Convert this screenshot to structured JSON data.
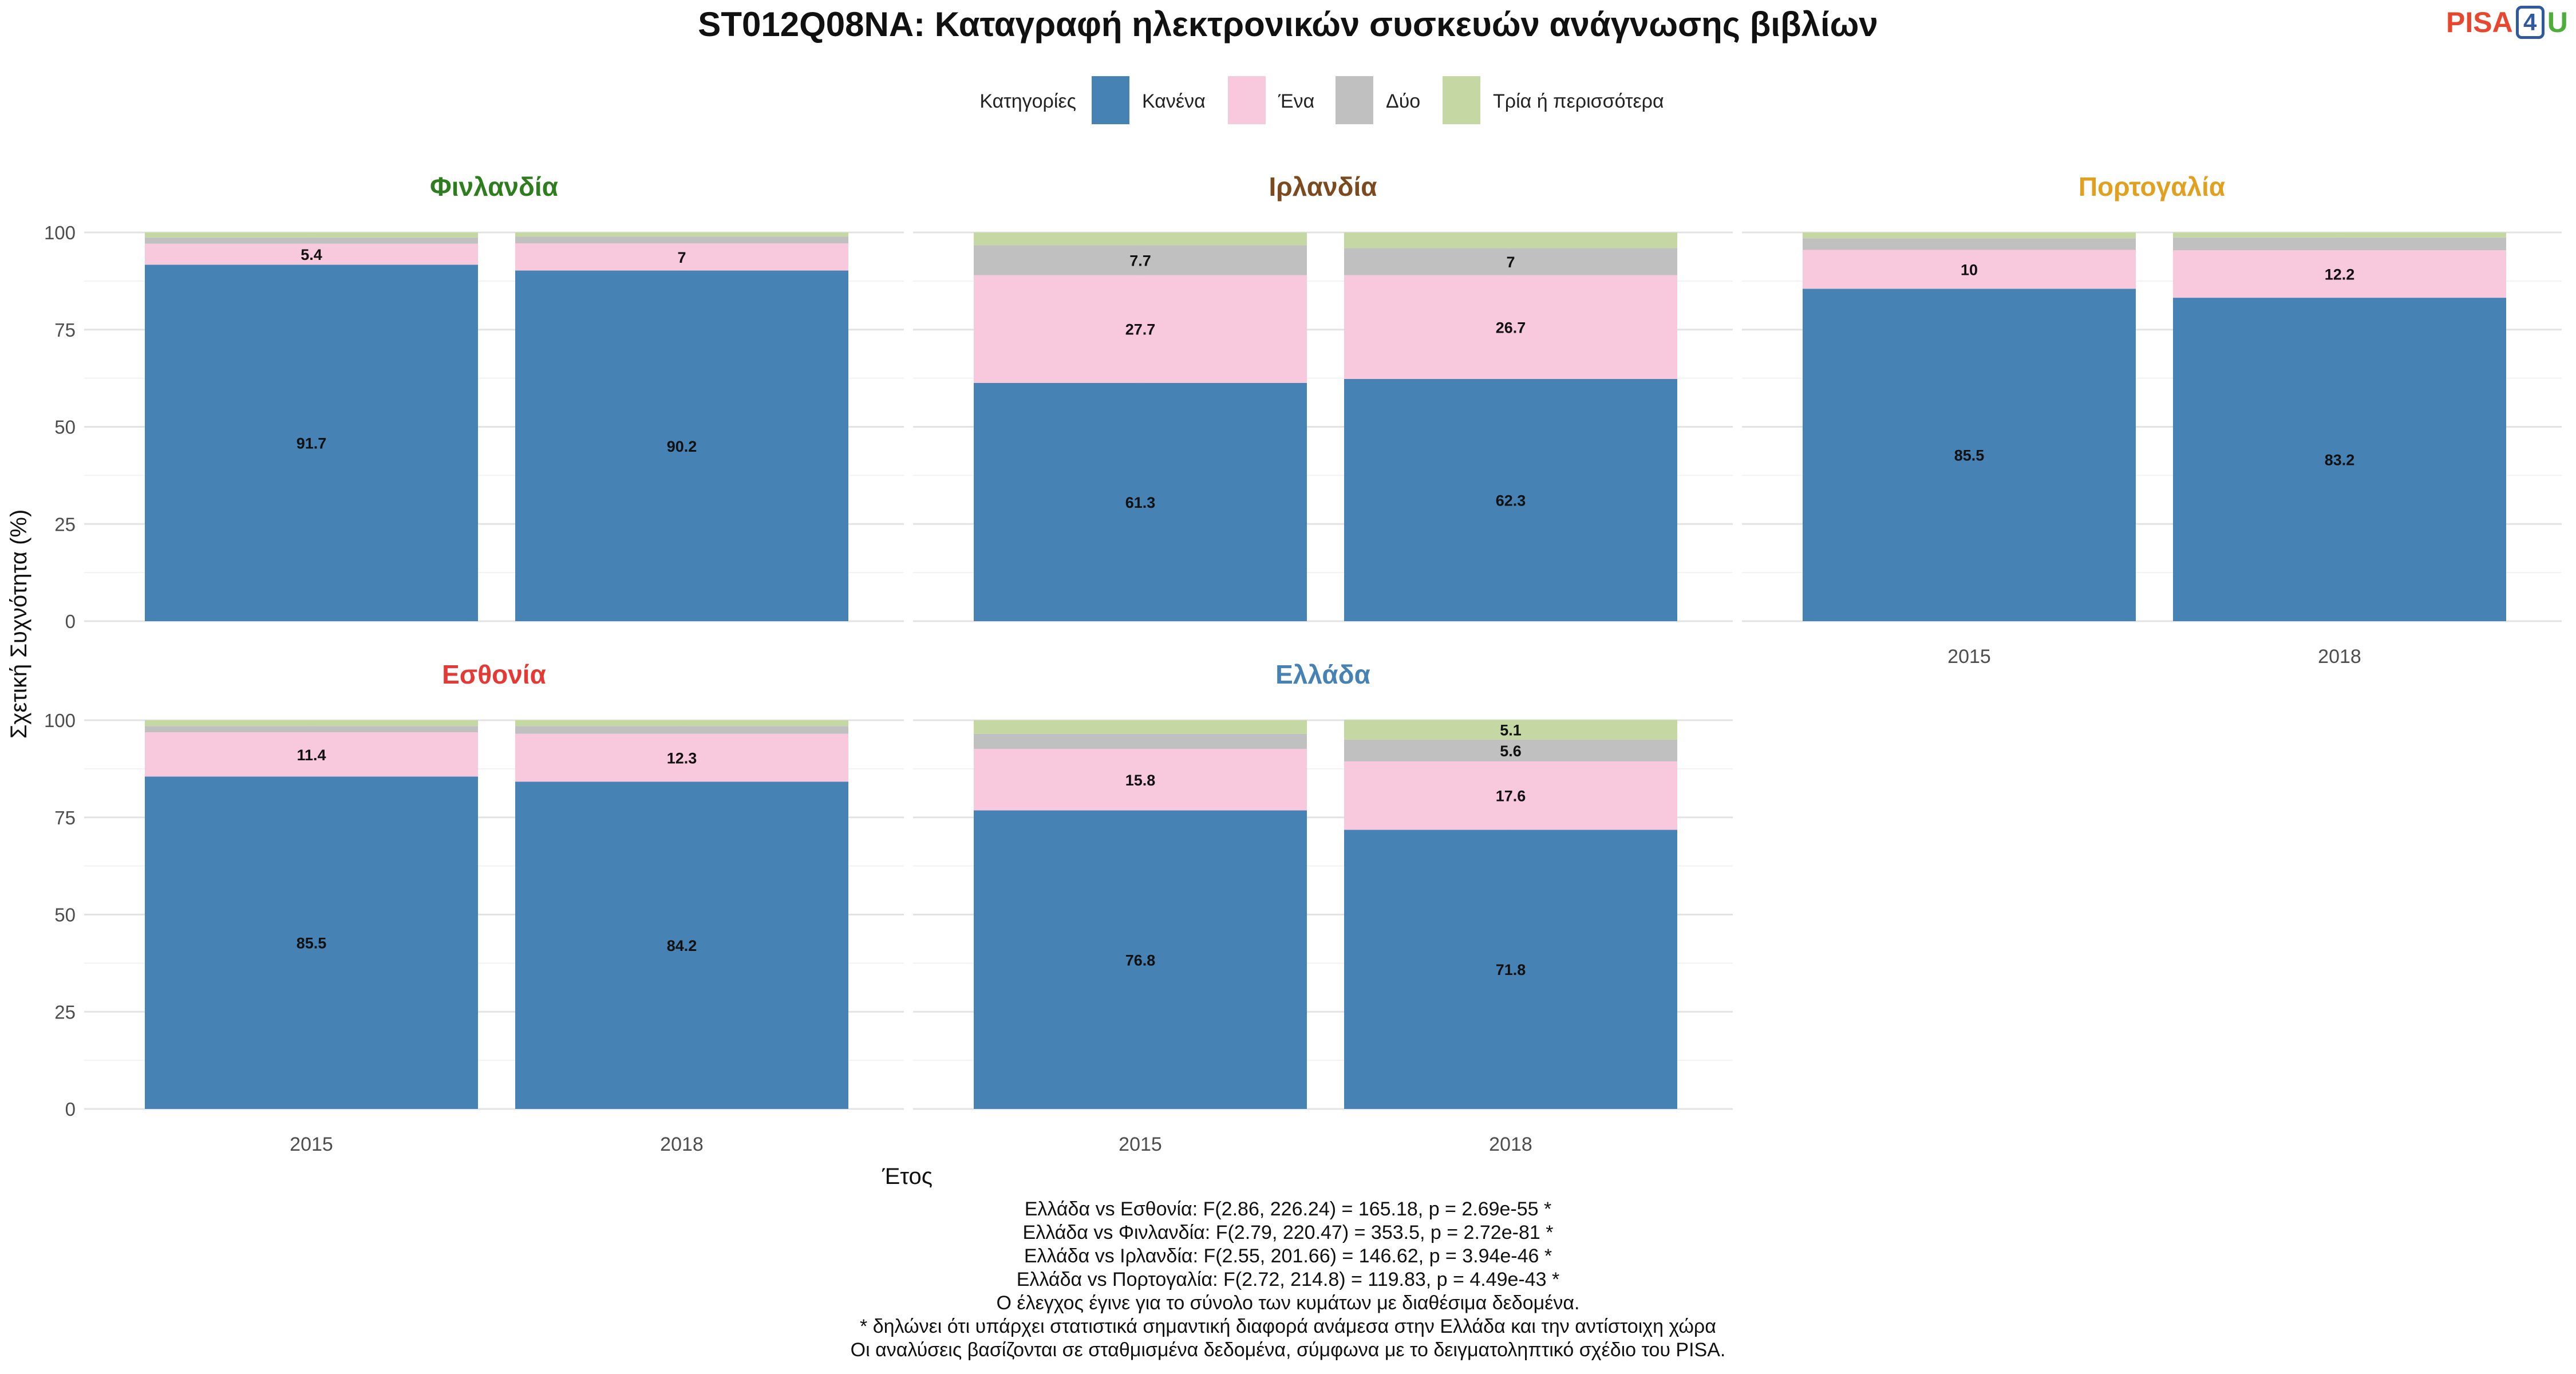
{
  "logo": {
    "left": "PISA",
    "middle": "4",
    "right": "U"
  },
  "chart_data": {
    "type": "bar",
    "stacked": true,
    "title": "ST012Q08NA: Καταγραφή ηλεκτρονικών συσκευών ανάγνωσης βιβλίων",
    "xlabel": "Έτος",
    "ylabel": "Σχετική Συχνότητα (%)",
    "ylim": [
      0,
      100
    ],
    "yticks": [
      "0",
      "25",
      "50",
      "75",
      "100"
    ],
    "categories": [
      "2015",
      "2018"
    ],
    "legend": {
      "title": "Κατηγορίες",
      "position": "top",
      "items": [
        {
          "label": "Κανένα",
          "color": "#4682b4"
        },
        {
          "label": "Ένα",
          "color": "#f8c8dc"
        },
        {
          "label": "Δύο",
          "color": "#c0c0c0"
        },
        {
          "label": "Τρία ή περισσότερα",
          "color": "#c5d8a4"
        }
      ]
    },
    "grid": true,
    "panels": [
      {
        "title": "Φινλανδία",
        "title_color": "#2e7d1e",
        "series": [
          {
            "name": "Κανένα",
            "values": [
              91.7,
              90.2
            ],
            "labels": [
              "91.7",
              "90.2"
            ]
          },
          {
            "name": "Ένα",
            "values": [
              5.4,
              7.0
            ],
            "labels": [
              "5.4",
              "7"
            ]
          },
          {
            "name": "Δύο",
            "values": [
              1.6,
              1.7
            ],
            "labels": [
              "",
              ""
            ]
          },
          {
            "name": "Τρία ή περισσότερα",
            "values": [
              1.3,
              1.1
            ],
            "labels": [
              "",
              ""
            ]
          }
        ]
      },
      {
        "title": "Ιρλανδία",
        "title_color": "#7b4a1e",
        "series": [
          {
            "name": "Κανένα",
            "values": [
              61.3,
              62.3
            ],
            "labels": [
              "61.3",
              "62.3"
            ]
          },
          {
            "name": "Ένα",
            "values": [
              27.7,
              26.7
            ],
            "labels": [
              "27.7",
              "26.7"
            ]
          },
          {
            "name": "Δύο",
            "values": [
              7.7,
              7.0
            ],
            "labels": [
              "7.7",
              "7"
            ]
          },
          {
            "name": "Τρία ή περισσότερα",
            "values": [
              3.3,
              4.0
            ],
            "labels": [
              "",
              ""
            ]
          }
        ]
      },
      {
        "title": "Πορτογαλία",
        "title_color": "#e0a020",
        "series": [
          {
            "name": "Κανένα",
            "values": [
              85.5,
              83.2
            ],
            "labels": [
              "85.5",
              "83.2"
            ]
          },
          {
            "name": "Ένα",
            "values": [
              10.0,
              12.2
            ],
            "labels": [
              "10",
              "12.2"
            ]
          },
          {
            "name": "Δύο",
            "values": [
              3.0,
              3.3
            ],
            "labels": [
              "",
              ""
            ]
          },
          {
            "name": "Τρία ή περισσότερα",
            "values": [
              1.5,
              1.3
            ],
            "labels": [
              "",
              ""
            ]
          }
        ]
      },
      {
        "title": "Εσθονία",
        "title_color": "#e53935",
        "series": [
          {
            "name": "Κανένα",
            "values": [
              85.5,
              84.2
            ],
            "labels": [
              "85.5",
              "84.2"
            ]
          },
          {
            "name": "Ένα",
            "values": [
              11.4,
              12.3
            ],
            "labels": [
              "11.4",
              "12.3"
            ]
          },
          {
            "name": "Δύο",
            "values": [
              1.6,
              2.0
            ],
            "labels": [
              "",
              ""
            ]
          },
          {
            "name": "Τρία ή περισσότερα",
            "values": [
              1.5,
              1.5
            ],
            "labels": [
              "",
              ""
            ]
          }
        ]
      },
      {
        "title": "Ελλάδα",
        "title_color": "#4682b4",
        "series": [
          {
            "name": "Κανένα",
            "values": [
              76.8,
              71.8
            ],
            "labels": [
              "76.8",
              "71.8"
            ]
          },
          {
            "name": "Ένα",
            "values": [
              15.8,
              17.6
            ],
            "labels": [
              "15.8",
              "17.6"
            ]
          },
          {
            "name": "Δύο",
            "values": [
              3.9,
              5.6
            ],
            "labels": [
              "",
              "5.6"
            ]
          },
          {
            "name": "Τρία ή περισσότερα",
            "values": [
              3.5,
              5.1
            ],
            "labels": [
              "",
              "5.1"
            ]
          }
        ]
      }
    ],
    "caption": [
      "Ελλάδα vs Εσθονία: F(2.86, 226.24) = 165.18, p = 2.69e-55 *",
      "Ελλάδα vs Φινλανδία: F(2.79, 220.47) = 353.5, p = 2.72e-81 *",
      "Ελλάδα vs Ιρλανδία: F(2.55, 201.66) = 146.62, p = 3.94e-46 *",
      "Ελλάδα vs Πορτογαλία: F(2.72, 214.8) = 119.83, p = 4.49e-43 *",
      "Ο έλεγχος έγινε για το σύνολο των κυμάτων με διαθέσιμα δεδομένα.",
      "* δηλώνει ότι υπάρχει στατιστικά σημαντική διαφορά ανάμεσα στην Ελλάδα και την αντίστοιχη χώρα",
      "Οι αναλύσεις βασίζονται σε σταθμισμένα δεδομένα, σύμφωνα με το δειγματοληπτικό σχέδιο του PISA."
    ]
  }
}
